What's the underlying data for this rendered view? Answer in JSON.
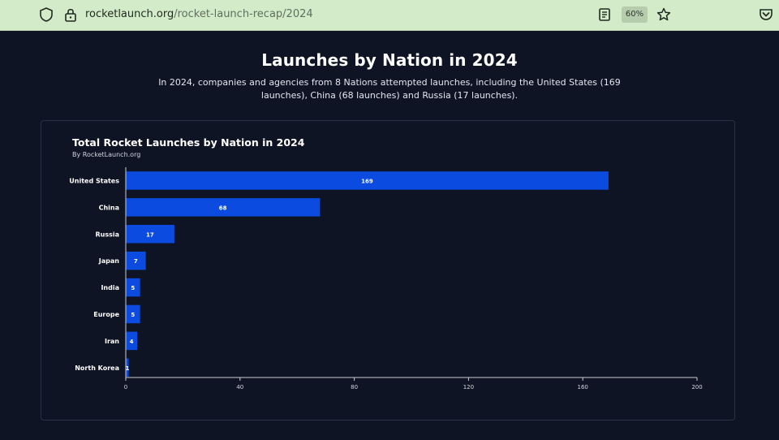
{
  "browser": {
    "url_domain": "rocketlaunch.org",
    "url_path": "/rocket-launch-recap/2024",
    "zoom": "60%",
    "icons": [
      "shield-icon",
      "lock-icon",
      "reader-view-icon",
      "bookmark-star-icon",
      "pocket-icon"
    ]
  },
  "page": {
    "title": "Launches by Nation in 2024",
    "description": "In 2024, companies and agencies from 8 Nations attempted launches, including the United States (169 launches), China (68 launches) and Russia (17 launches)."
  },
  "colors": {
    "background": "#0f1424",
    "bar": "#0b4be0",
    "toolbar": "#d4ebc9"
  },
  "chart_data": {
    "type": "bar",
    "orientation": "horizontal",
    "title": "Total Rocket Launches by Nation in 2024",
    "subtitle": "By RocketLaunch.org",
    "categories": [
      "United States",
      "China",
      "Russia",
      "Japan",
      "India",
      "Europe",
      "Iran",
      "North Korea"
    ],
    "values": [
      169,
      68,
      17,
      7,
      5,
      5,
      4,
      1
    ],
    "xlim": [
      0,
      200
    ],
    "xticks": [
      0,
      40,
      80,
      120,
      160,
      200
    ],
    "xlabel": "",
    "ylabel": "",
    "grid": false
  }
}
